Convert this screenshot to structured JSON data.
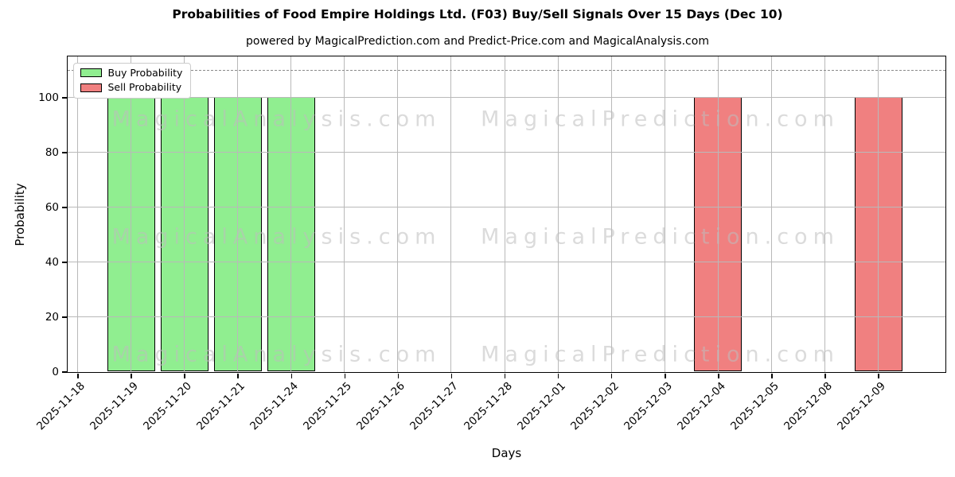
{
  "chart_data": {
    "type": "bar",
    "title": "Probabilities of Food Empire Holdings Ltd. (F03) Buy/Sell Signals Over 15 Days (Dec 10)",
    "subtitle": "powered by MagicalPrediction.com and Predict-Price.com and MagicalAnalysis.com",
    "xlabel": "Days",
    "ylabel": "Probability",
    "categories": [
      "2025-11-18",
      "2025-11-19",
      "2025-11-20",
      "2025-11-21",
      "2025-11-24",
      "2025-11-25",
      "2025-11-26",
      "2025-11-27",
      "2025-11-28",
      "2025-12-01",
      "2025-12-02",
      "2025-12-03",
      "2025-12-04",
      "2025-12-05",
      "2025-12-08",
      "2025-12-09"
    ],
    "series": [
      {
        "name": "Buy Probability",
        "color": "#90ee90",
        "values": [
          0,
          100,
          100,
          100,
          100,
          0,
          0,
          0,
          0,
          0,
          0,
          0,
          0,
          0,
          0,
          0
        ]
      },
      {
        "name": "Sell Probability",
        "color": "#f08080",
        "values": [
          0,
          0,
          0,
          0,
          0,
          0,
          0,
          0,
          0,
          0,
          0,
          0,
          100,
          0,
          0,
          100
        ]
      }
    ],
    "yticks": [
      0,
      20,
      40,
      60,
      80,
      100
    ],
    "ylim": [
      0,
      115
    ],
    "dashed_reference_line_y": 110,
    "grid": true,
    "legend_position": "upper-left",
    "bar_edge_color": "#000000",
    "grid_color": "#b9b9b9",
    "watermark_left": "MagicalAnalysis.com",
    "watermark_right": "MagicalPrediction.com"
  }
}
